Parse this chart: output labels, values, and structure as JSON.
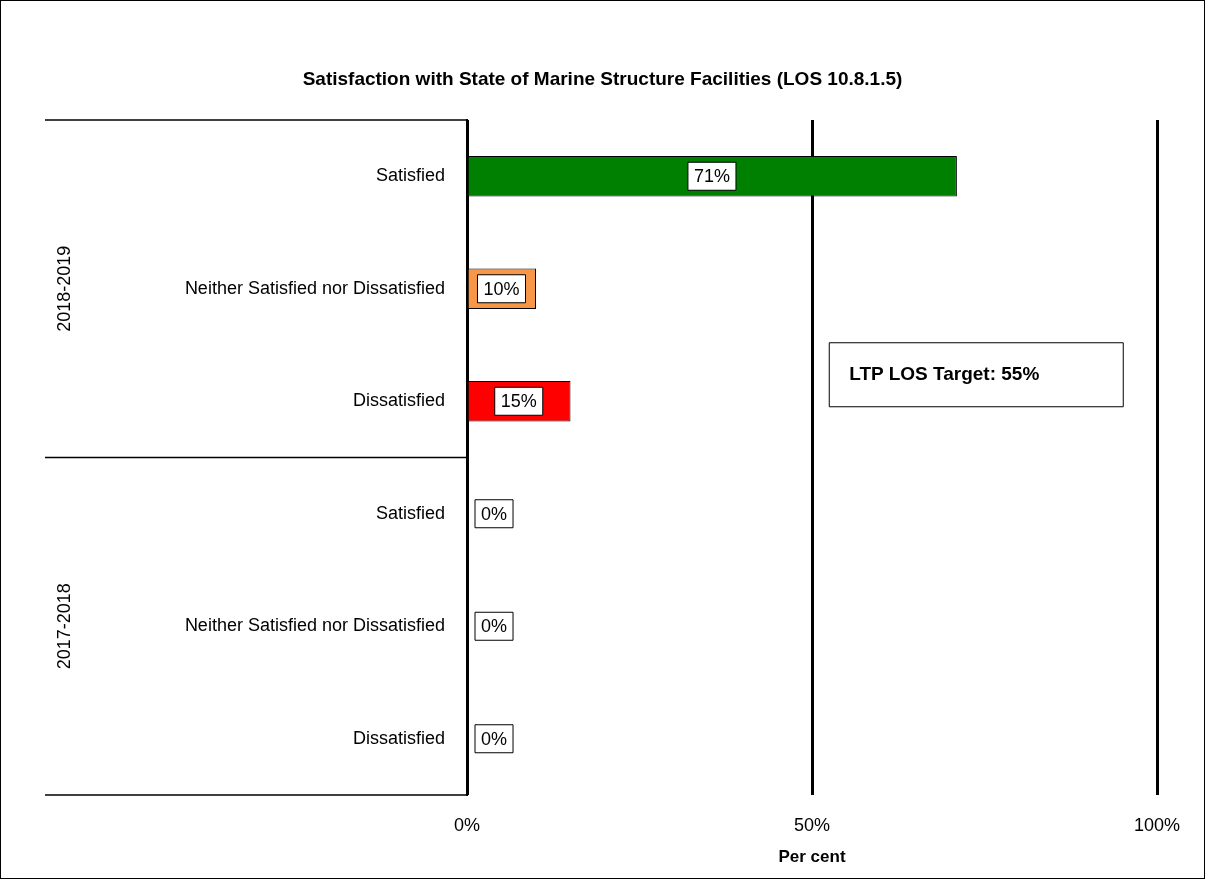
{
  "chart_data": {
    "type": "bar",
    "orientation": "horizontal",
    "title": "Satisfaction with State of Marine Structure Facilities (LOS 10.8.1.5)",
    "xlabel": "Per cent",
    "categories": [
      "Satisfied",
      "Neither Satisfied nor Dissatisfied",
      "Dissatisfied",
      "Satisfied",
      "Neither Satisfied nor Dissatisfied",
      "Dissatisfied"
    ],
    "values": [
      71,
      10,
      15,
      0,
      0,
      0
    ],
    "colors": [
      "#008000",
      "#f79646",
      "#ff0000",
      "#008000",
      "#f79646",
      "#ff0000"
    ],
    "xlim": [
      0,
      100
    ],
    "xticks": [
      {
        "value": 0,
        "label": "0%"
      },
      {
        "value": 50,
        "label": "50%"
      },
      {
        "value": 100,
        "label": "100%"
      }
    ],
    "grid": "x",
    "legend": false,
    "value_labels": [
      "71%",
      "10%",
      "15%",
      "0%",
      "0%",
      "0%"
    ],
    "annotations": [
      "2018-2019",
      "2017-2018",
      "LTP LOS Target: 55%"
    ]
  }
}
